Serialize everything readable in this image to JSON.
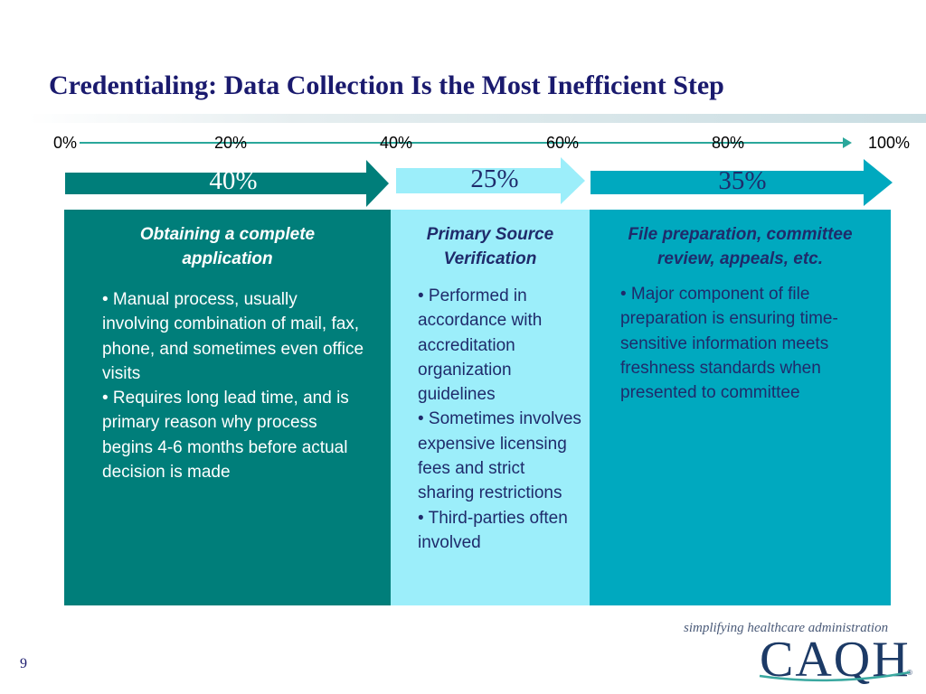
{
  "slide": {
    "title": "Credentialing: Data Collection Is the Most Inefficient Step",
    "page_number": "9"
  },
  "scale": {
    "ticks": [
      "0%",
      "20%",
      "40%",
      "60%",
      "80%",
      "100%"
    ]
  },
  "bands": [
    {
      "label": "40%",
      "share_percent": 40,
      "color": "#007e7a",
      "label_color": "#ffffff"
    },
    {
      "label": "25%",
      "share_percent": 25,
      "color": "#9ceefa",
      "label_color": "#1f2b6b"
    },
    {
      "label": "35%",
      "share_percent": 35,
      "color": "#00a9bf",
      "label_color": "#1f2b6b"
    }
  ],
  "panels": [
    {
      "heading": [
        "Obtaining a complete",
        "application"
      ],
      "bullets": [
        "• Manual process, usually involving combination of mail, fax, phone, and sometimes even office visits",
        "• Requires long lead time, and is primary reason why process begins 4-6 months before actual decision is made"
      ]
    },
    {
      "heading": [
        "Primary Source",
        "Verification"
      ],
      "bullets": [
        "•   Performed in accordance with accreditation organization guidelines",
        "•   Sometimes involves expensive licensing fees and strict sharing restrictions",
        "•   Third-parties often involved"
      ]
    },
    {
      "heading": [
        "File preparation, committee",
        "review, appeals, etc."
      ],
      "bullets": [
        "•  Major component of file preparation is ensuring time-sensitive information meets freshness standards when presented to committee"
      ]
    }
  ],
  "logo": {
    "tagline": "simplifying healthcare administration",
    "wordmark": "CAQH",
    "registered": "®"
  },
  "colors": {
    "title": "#1a1a6e",
    "scale_line": "#2aa79b",
    "body_dark_text": "#1f2b6b"
  }
}
